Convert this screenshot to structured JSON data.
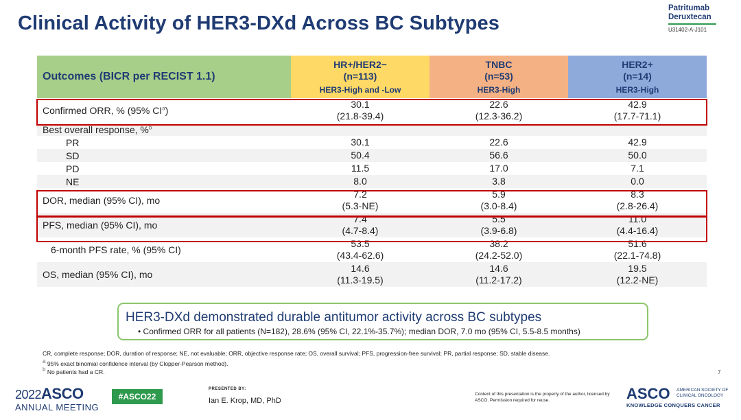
{
  "title": "Clinical Activity of HER3-DXd Across BC Subtypes",
  "brand": {
    "line1": "Patritumab",
    "line2": "Deruxtecan",
    "code": "U31402-A-J101"
  },
  "table": {
    "header_label": "Outcomes (BICR per RECIST 1.1)",
    "columns": [
      {
        "name": "HR+/HER2−",
        "n": "(n=113)",
        "sub": "HER3-High and -Low"
      },
      {
        "name": "TNBC",
        "n": "(n=53)",
        "sub": "HER3-High"
      },
      {
        "name": "HER2+",
        "n": "(n=14)",
        "sub": "HER3-High"
      }
    ],
    "rows": [
      {
        "label": "Confirmed ORR, % (95% CI",
        "sup": "a",
        "label_end": ")",
        "v": [
          "30.1",
          "22.6",
          "42.9"
        ],
        "ci": [
          "(21.8-39.4)",
          "(12.3-36.2)",
          "(17.7-71.1)"
        ]
      },
      {
        "label": "Best overall response, %",
        "sup": "b"
      },
      {
        "label": "PR",
        "v": [
          "30.1",
          "22.6",
          "42.9"
        ]
      },
      {
        "label": "SD",
        "v": [
          "50.4",
          "56.6",
          "50.0"
        ]
      },
      {
        "label": "PD",
        "v": [
          "11.5",
          "17.0",
          "7.1"
        ]
      },
      {
        "label": "NE",
        "v": [
          "8.0",
          "3.8",
          "0.0"
        ]
      },
      {
        "label": "DOR, median (95% CI), mo",
        "v": [
          "7.2",
          "5.9",
          "8.3"
        ],
        "ci": [
          "(5.3-NE)",
          "(3.0-8.4)",
          "(2.8-26.4)"
        ]
      },
      {
        "label": "PFS, median (95% CI), mo",
        "v": [
          "7.4",
          "5.5",
          "11.0"
        ],
        "ci": [
          "(4.7-8.4)",
          "(3.9-6.8)",
          "(4.4-16.4)"
        ]
      },
      {
        "label": "6-month PFS rate, % (95% CI)",
        "v": [
          "53.5",
          "38.2",
          "51.6"
        ],
        "ci": [
          "(43.4-62.6)",
          "(24.2-52.0)",
          "(22.1-74.8)"
        ]
      },
      {
        "label": "OS, median (95% CI), mo",
        "v": [
          "14.6",
          "14.6",
          "19.5"
        ],
        "ci": [
          "(11.3-19.5)",
          "(11.2-17.2)",
          "(12.2-NE)"
        ]
      }
    ]
  },
  "key_box": {
    "headline": "HER3-DXd demonstrated durable antitumor activity across BC subtypes",
    "bullet": "Confirmed ORR for all patients (N=182), 28.6% (95% CI, 22.1%-35.7%); median DOR, 7.0 mo (95% CI, 5.5-8.5 months)"
  },
  "footnotes": {
    "abbrev": "CR, complete response; DOR, duration of response; NE, not evaluable; ORR, objective response rate; OS, overall survival; PFS, progression-free survival; PR, partial response; SD, stable disease.",
    "a_mark": "a",
    "a": "95% exact binomial confidence interval (by Clopper-Pearson method).",
    "b_mark": "b",
    "b": "No patients had a CR."
  },
  "page_number": "7",
  "footer": {
    "year": "2022",
    "asco": "ASCO",
    "meeting": "ANNUAL MEETING",
    "hashtag": "#ASCO22",
    "presented_by": "PRESENTED BY:",
    "presenter": "Ian E. Krop, MD, PhD",
    "rights": "Content of this presentation is the property of the author, licensed by ASCO. Permission required for reuse.",
    "society_logo": "ASCO",
    "society": "AMERICAN SOCIETY OF CLINICAL ONCOLOGY",
    "tagline": "KNOWLEDGE CONQUERS CANCER"
  },
  "colors": {
    "title": "#1f3b73",
    "hr_col": "#ffd966",
    "tnbc_col": "#f4b183",
    "her2_col": "#8eaadb",
    "outcome_col": "#a8cf8a",
    "highlight": "#c00000",
    "accent_green": "#2e9a4e"
  }
}
